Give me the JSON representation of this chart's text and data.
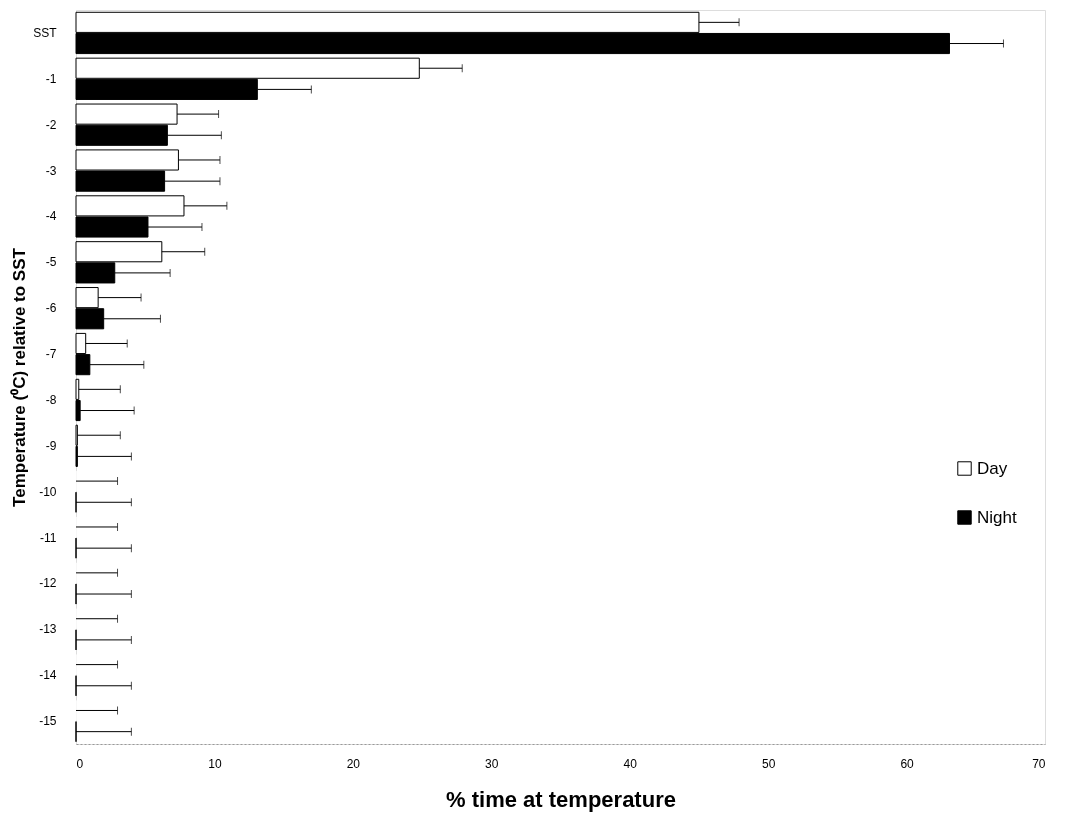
{
  "chart_data": {
    "type": "bar",
    "orientation": "horizontal",
    "xlabel": "% time at temperature",
    "ylabel": "Temperature (⁰C) relative to SST",
    "categories": [
      "SST",
      "-1",
      "-2",
      "-3",
      "-4",
      "-5",
      "-6",
      "-7",
      "-8",
      "-9",
      "-10",
      "-11",
      "-12",
      "-13",
      "-14",
      "-15"
    ],
    "series": [
      {
        "name": "Day",
        "color": "#ffffff",
        "values": [
          45.0,
          24.8,
          7.3,
          7.4,
          7.8,
          6.2,
          1.6,
          0.7,
          0.2,
          0.1,
          0,
          0,
          0,
          0,
          0,
          0
        ],
        "errors": [
          [
            45.0,
            47.9
          ],
          [
            24.8,
            27.9
          ],
          [
            7.3,
            10.3
          ],
          [
            7.4,
            10.4
          ],
          [
            7.8,
            10.9
          ],
          [
            6.2,
            9.3
          ],
          [
            1.6,
            4.7
          ],
          [
            0.7,
            3.7
          ],
          [
            0.2,
            3.2
          ],
          [
            0.1,
            3.2
          ],
          [
            0,
            3.0
          ],
          [
            0,
            3.0
          ],
          [
            0,
            3.0
          ],
          [
            0,
            3.0
          ],
          [
            0,
            3.0
          ],
          [
            0,
            3.0
          ]
        ]
      },
      {
        "name": "Night",
        "color": "#000000",
        "values": [
          63.1,
          13.1,
          6.6,
          6.4,
          5.2,
          2.8,
          2.0,
          1.0,
          0.3,
          0.1,
          0,
          0,
          0,
          0,
          0,
          0
        ],
        "errors": [
          [
            63.1,
            67.0
          ],
          [
            13.1,
            17.0
          ],
          [
            6.6,
            10.5
          ],
          [
            6.4,
            10.4
          ],
          [
            5.2,
            9.1
          ],
          [
            2.8,
            6.8
          ],
          [
            2.0,
            6.1
          ],
          [
            1.0,
            4.9
          ],
          [
            0.3,
            4.2
          ],
          [
            0.1,
            4.0
          ],
          [
            0,
            4.0
          ],
          [
            0,
            4.0
          ],
          [
            0,
            4.0
          ],
          [
            0,
            4.0
          ],
          [
            0,
            4.0
          ],
          [
            0,
            4.0
          ]
        ]
      }
    ],
    "xlim": [
      0,
      70
    ],
    "xticks": [
      0,
      10,
      20,
      30,
      40,
      50,
      60,
      70
    ],
    "grid": false,
    "legend": "right"
  }
}
